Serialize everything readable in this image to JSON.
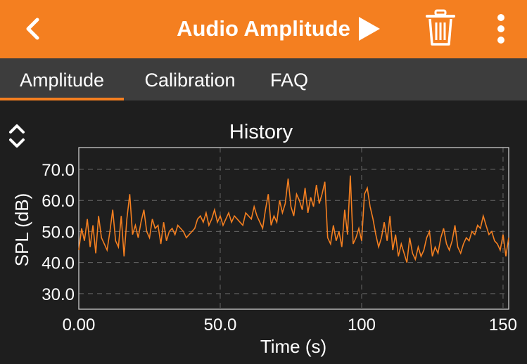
{
  "header": {
    "title": "Audio Amplitude",
    "back_icon": "chevron-left-icon",
    "play_icon": "play-icon",
    "delete_icon": "trash-icon",
    "more_icon": "more-vertical-icon",
    "bg_color": "#f47f20"
  },
  "tabs": [
    {
      "label": "Amplitude",
      "active": true
    },
    {
      "label": "Calibration",
      "active": false
    },
    {
      "label": "FAQ",
      "active": false
    }
  ],
  "chart_data": {
    "type": "line",
    "title": "History",
    "xlabel": "Time (s)",
    "ylabel": "SPL (dB)",
    "xlim": [
      0,
      152
    ],
    "ylim": [
      25,
      77
    ],
    "xticks": [
      0,
      50,
      100,
      150
    ],
    "xtick_labels": [
      "0.00",
      "50.0",
      "100",
      "150"
    ],
    "yticks": [
      30,
      40,
      50,
      60,
      70
    ],
    "ytick_labels": [
      "30.0",
      "40.0",
      "50.0",
      "60.0",
      "70.0"
    ],
    "grid": true,
    "line_color": "#f47f20",
    "series": [
      {
        "x": [
          0,
          1,
          2,
          3,
          4,
          5,
          6,
          7,
          8,
          9,
          10,
          11,
          12,
          13,
          14,
          15,
          16,
          17,
          18,
          19,
          20,
          21,
          22,
          23,
          24,
          25,
          26,
          27,
          28,
          29,
          30,
          31,
          32,
          33,
          34,
          35,
          36,
          37,
          38,
          39,
          40,
          41,
          42,
          43,
          44,
          45,
          46,
          47,
          48,
          49,
          50,
          51,
          52,
          53,
          54,
          55,
          56,
          57,
          58,
          59,
          60,
          61,
          62,
          63,
          64,
          65,
          66,
          67,
          68,
          69,
          70,
          71,
          72,
          73,
          74,
          75,
          76,
          77,
          78,
          79,
          80,
          81,
          82,
          83,
          84,
          85,
          86,
          87,
          88,
          89,
          90,
          91,
          92,
          93,
          94,
          95,
          96,
          97,
          98,
          99,
          100,
          101,
          102,
          103,
          104,
          105,
          106,
          107,
          108,
          109,
          110,
          111,
          112,
          113,
          114,
          115,
          116,
          117,
          118,
          119,
          120,
          121,
          122,
          123,
          124,
          125,
          126,
          127,
          128,
          129,
          130,
          131,
          132,
          133,
          134,
          135,
          136,
          137,
          138,
          139,
          140,
          141,
          142,
          143,
          144,
          145,
          146,
          147,
          148,
          149,
          150,
          151,
          152
        ],
        "y": [
          44,
          51,
          47,
          54,
          45,
          52,
          43,
          55,
          48,
          46,
          44,
          50,
          57,
          47,
          45,
          55,
          42,
          54,
          62,
          49,
          52,
          48,
          53,
          57,
          50,
          48,
          54,
          51,
          52,
          46,
          53,
          47,
          50,
          51,
          49,
          52,
          51,
          50,
          48,
          49,
          50,
          51,
          54,
          55,
          53,
          56,
          52,
          54,
          57,
          53,
          55,
          52,
          54,
          56,
          53,
          55,
          54,
          53,
          52,
          56,
          55,
          54,
          58,
          55,
          53,
          51,
          57,
          62,
          52,
          55,
          53,
          60,
          56,
          59,
          67,
          58,
          55,
          62,
          60,
          57,
          64,
          56,
          61,
          58,
          65,
          59,
          62,
          66,
          48,
          46,
          52,
          47,
          50,
          45,
          57,
          49,
          68,
          46,
          48,
          51,
          47,
          62,
          64,
          58,
          54,
          49,
          45,
          48,
          53,
          47,
          55,
          44,
          49,
          42,
          46,
          43,
          40,
          48,
          43,
          41,
          45,
          42,
          44,
          48,
          50,
          42,
          45,
          43,
          48,
          51,
          46,
          44,
          47,
          52,
          45,
          43,
          46,
          48,
          47,
          50,
          49,
          52,
          51,
          55,
          52,
          49,
          50,
          47,
          46,
          44,
          49,
          42,
          48
        ]
      }
    ]
  }
}
